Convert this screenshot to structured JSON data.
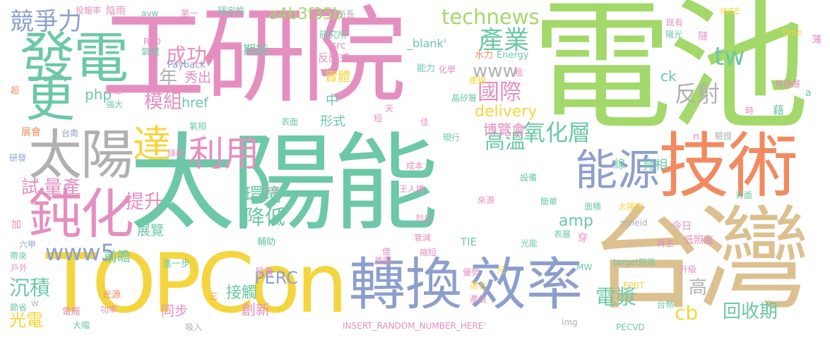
{
  "palette": {
    "green": "#a3d86a",
    "pink": "#e58fc0",
    "teal": "#6cc8a6",
    "orange": "#f28a5f",
    "tan": "#dcc08f",
    "blue": "#8c9fcc",
    "yellow": "#f5d53f",
    "gray": "#b0b0b0"
  },
  "words": [
    {
      "text": "太陽能",
      "color": "teal"
    },
    {
      "text": "電池",
      "color": "green"
    },
    {
      "text": "工研院",
      "color": "pink"
    },
    {
      "text": "台灣",
      "color": "tan"
    },
    {
      "text": "TOPCon",
      "color": "yellow"
    },
    {
      "text": "技術",
      "color": "orange"
    },
    {
      "text": "轉換",
      "color": "blue"
    },
    {
      "text": "效率",
      "color": "blue"
    },
    {
      "text": "發電",
      "color": "teal"
    },
    {
      "text": "更",
      "color": "teal"
    },
    {
      "text": "太陽",
      "color": "gray"
    },
    {
      "text": "鈍化",
      "color": "pink"
    },
    {
      "text": "能源",
      "color": "blue"
    },
    {
      "text": "利用",
      "color": "pink"
    },
    {
      "text": "達",
      "color": "yellow"
    },
    {
      "text": "technews",
      "color": "green"
    },
    {
      "text": "產業",
      "color": "teal"
    },
    {
      "text": "競爭力",
      "color": "blue"
    },
    {
      "text": "a4b3f35b",
      "color": "green"
    },
    {
      "text": "www5",
      "color": "blue"
    },
    {
      "text": "成功",
      "color": "pink"
    },
    {
      "text": "模組",
      "color": "pink"
    },
    {
      "text": "提升",
      "color": "pink"
    },
    {
      "text": "國際",
      "color": "pink"
    },
    {
      "text": "氧化層",
      "color": "teal"
    },
    {
      "text": "www",
      "color": "gray"
    },
    {
      "text": "delivery",
      "color": "yellow"
    },
    {
      "text": "tw",
      "color": "teal"
    },
    {
      "text": "反射",
      "color": "gray"
    },
    {
      "text": "回收期",
      "color": "teal"
    },
    {
      "text": "cb",
      "color": "yellow"
    },
    {
      "text": "電漿",
      "color": "teal"
    },
    {
      "text": "PERC",
      "color": "blue"
    },
    {
      "text": "沉積",
      "color": "teal"
    },
    {
      "text": "光電",
      "color": "yellow"
    },
    {
      "text": "降低",
      "color": "teal"
    },
    {
      "text": "amp",
      "color": "teal"
    },
    {
      "text": "高溫",
      "color": "teal"
    },
    {
      "text": "博覽會",
      "color": "pink"
    },
    {
      "text": "試",
      "color": "pink"
    },
    {
      "text": "量產",
      "color": "pink"
    },
    {
      "text": "年",
      "color": "gray"
    },
    {
      "text": "環境",
      "color": "teal"
    },
    {
      "text": "接觸",
      "color": "teal"
    },
    {
      "text": "創新",
      "color": "pink"
    },
    {
      "text": "php",
      "color": "teal"
    },
    {
      "text": "同步",
      "color": "pink"
    },
    {
      "text": "前瞻",
      "color": "teal"
    },
    {
      "text": "展覽",
      "color": "teal"
    },
    {
      "text": "高",
      "color": "gray"
    },
    {
      "text": "秀出",
      "color": "pink"
    },
    {
      "text": "href",
      "color": "teal"
    },
    {
      "text": "實體",
      "color": "yellow"
    },
    {
      "text": "期能",
      "color": "teal"
    },
    {
      "text": "形式",
      "color": "teal"
    },
    {
      "text": "中",
      "color": "teal"
    },
    {
      "text": "亮相",
      "color": "teal"
    },
    {
      "text": "ck",
      "color": "teal"
    },
    {
      "text": "_blank'",
      "color": "teal"
    },
    {
      "text": "src",
      "color": "pink"
    },
    {
      "text": "反應式",
      "color": "pink"
    },
    {
      "text": "研究所",
      "color": "teal"
    },
    {
      "text": "水力",
      "color": "orange"
    },
    {
      "text": "Energy",
      "color": "teal"
    },
    {
      "text": "能力",
      "color": "teal"
    },
    {
      "text": "化學",
      "color": "pink"
    },
    {
      "text": "產線",
      "color": "yellow"
    },
    {
      "text": "晶矽層",
      "color": "teal"
    },
    {
      "text": "表面",
      "color": "teal"
    },
    {
      "text": "短",
      "color": "pink"
    },
    {
      "text": "天",
      "color": "pink"
    },
    {
      "text": "佳",
      "color": "pink"
    },
    {
      "text": "現行",
      "color": "teal"
    },
    {
      "text": "線",
      "color": "teal"
    },
    {
      "text": "設備",
      "color": "teal"
    },
    {
      "text": "成本",
      "color": "pink"
    },
    {
      "text": "來源",
      "color": "pink"
    },
    {
      "text": "面積",
      "color": "teal"
    },
    {
      "text": "太陽光",
      "color": "yellow"
    },
    {
      "text": "簡單",
      "color": "teal"
    },
    {
      "text": "王人謙",
      "color": "pink"
    },
    {
      "text": "烈日",
      "color": "pink"
    },
    {
      "text": "衰減",
      "color": "pink"
    },
    {
      "text": "縮短",
      "color": "pink"
    },
    {
      "text": "表層",
      "color": "teal"
    },
    {
      "text": "光能",
      "color": "teal"
    },
    {
      "text": "TIE",
      "color": "teal"
    },
    {
      "text": "億",
      "color": "pink"
    },
    {
      "text": "首圖",
      "color": "pink"
    },
    {
      "text": "優勢",
      "color": "pink"
    },
    {
      "text": "適合",
      "color": "yellow"
    },
    {
      "text": "產值",
      "color": "pink"
    },
    {
      "text": "元",
      "color": "yellow"
    },
    {
      "text": "INSERT_RANDOM_NUMBER_HERE'",
      "color": "pink"
    },
    {
      "text": "img",
      "color": "gray"
    },
    {
      "text": "PECVD",
      "color": "teal"
    },
    {
      "text": "MW",
      "color": "teal"
    },
    {
      "text": "target院區",
      "color": "teal"
    },
    {
      "text": "EPBT",
      "color": "yellow"
    },
    {
      "text": "台幣",
      "color": "teal"
    },
    {
      "text": "升級",
      "color": "pink"
    },
    {
      "text": "再生",
      "color": "pink"
    },
    {
      "text": "低照度",
      "color": "pink"
    },
    {
      "text": "今日",
      "color": "pink"
    },
    {
      "text": "穿",
      "color": "pink"
    },
    {
      "text": "zoneid",
      "color": "gray"
    },
    {
      "text": "背面",
      "color": "teal"
    },
    {
      "text": "驗證",
      "color": "gray"
    },
    {
      "text": "n",
      "color": "pink"
    },
    {
      "text": "時",
      "color": "pink"
    },
    {
      "text": "藉",
      "color": "teal"
    },
    {
      "text": "堆疊層",
      "color": "pink"
    },
    {
      "text": "a",
      "color": "teal"
    },
    {
      "text": "薄",
      "color": "pink"
    },
    {
      "text": "Time",
      "color": "yellow"
    },
    {
      "text": "INSE",
      "color": "yellow"
    },
    {
      "text": "既有",
      "color": "pink"
    },
    {
      "text": "陽光",
      "color": "teal"
    },
    {
      "text": "隧",
      "color": "pink"
    },
    {
      "text": "所長",
      "color": "gray"
    },
    {
      "text": "投報率",
      "color": "pink"
    },
    {
      "text": "陰雨",
      "color": "pink"
    },
    {
      "text": "avw",
      "color": "teal"
    },
    {
      "text": "第一",
      "color": "pink"
    },
    {
      "text": "穩定性",
      "color": "teal"
    },
    {
      "text": "氣候",
      "color": "teal"
    },
    {
      "text": "Payback",
      "color": "blue"
    },
    {
      "text": "RPD",
      "color": "pink"
    },
    {
      "text": "超越",
      "color": "pink"
    },
    {
      "text": "強大",
      "color": "teal"
    },
    {
      "text": "超",
      "color": "orange"
    },
    {
      "text": "粗",
      "color": "pink"
    },
    {
      "text": "氣相",
      "color": "teal"
    },
    {
      "text": "展會",
      "color": "orange"
    },
    {
      "text": "台南",
      "color": "blue"
    },
    {
      "text": "研發",
      "color": "blue"
    },
    {
      "text": "綠能",
      "color": "pink"
    },
    {
      "text": "改善",
      "color": "gray"
    },
    {
      "text": "加",
      "color": "pink"
    },
    {
      "text": "六甲",
      "color": "blue"
    },
    {
      "text": "帶來",
      "color": "teal"
    },
    {
      "text": "戶外",
      "color": "pink"
    },
    {
      "text": "輔助",
      "color": "teal"
    },
    {
      "text": "進一步",
      "color": "teal"
    },
    {
      "text": "昂貴",
      "color": "pink"
    },
    {
      "text": "節省",
      "color": "teal"
    },
    {
      "text": "光源",
      "color": "orange"
    },
    {
      "text": "功率",
      "color": "pink"
    },
    {
      "text": "電廠",
      "color": "pink"
    },
    {
      "text": "大幅",
      "color": "teal"
    },
    {
      "text": "吸入",
      "color": "gray"
    },
    {
      "text": "W",
      "color": "gray"
    },
    {
      "text": "三",
      "color": "orange"
    }
  ]
}
